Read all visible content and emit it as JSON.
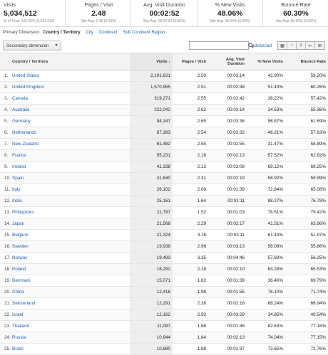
{
  "summary": [
    {
      "label": "Visits",
      "value": "5,034,512",
      "sub": "% of Total: 100.00% (5,034,512)"
    },
    {
      "label": "Pages / Visit",
      "value": "2.48",
      "sub": "Site Avg: 2.48 (0.00%)"
    },
    {
      "label": "Avg. Visit Duration",
      "value": "00:02:52",
      "sub": "Site Avg: 00:02:52 (0.00%)"
    },
    {
      "label": "% New Visits",
      "value": "48.06%",
      "sub": "Site Avg: 48.06% (0.00%)"
    },
    {
      "label": "Bounce Rate",
      "value": "60.30%",
      "sub": "Site Avg: 60.30% (0.00%)"
    }
  ],
  "primary_dimension": {
    "label": "Primary Dimension:",
    "active": "Country / Territory",
    "links": [
      "City",
      "Continent",
      "Sub Continent Region"
    ]
  },
  "toolbar": {
    "secondary_dimension": "Secondary dimension",
    "search_value": "",
    "advanced": "advanced"
  },
  "columns": {
    "country": "Country / Territory",
    "visits": "Visits",
    "pages_visit": "Pages / Visit",
    "duration": "Avg. Visit Duration",
    "new_visits": "% New Visits",
    "bounce": "Bounce Rate"
  },
  "rows": [
    {
      "idx": "1.",
      "country": "United States",
      "visits": "2,101,621",
      "pv": "2.50",
      "dur": "00:03:14",
      "new": "42.90%",
      "br": "59.20%"
    },
    {
      "idx": "2.",
      "country": "United Kingdom",
      "visits": "1,570,955",
      "pv": "2.51",
      "dur": "00:02:38",
      "new": "51.43%",
      "br": "60.26%"
    },
    {
      "idx": "3.",
      "country": "Canada",
      "visits": "319,271",
      "pv": "2.55",
      "dur": "00:02:42",
      "new": "38.22%",
      "br": "57.42%"
    },
    {
      "idx": "4.",
      "country": "Australia",
      "visits": "222,042",
      "pv": "2.62",
      "dur": "00:03:14",
      "new": "34.53%",
      "br": "55.36%"
    },
    {
      "idx": "5.",
      "country": "Germany",
      "visits": "94,347",
      "pv": "2.65",
      "dur": "00:03:38",
      "new": "56.87%",
      "br": "61.69%"
    },
    {
      "idx": "6.",
      "country": "Netherlands",
      "visits": "67,383",
      "pv": "2.54",
      "dur": "00:02:32",
      "new": "46.21%",
      "br": "57.63%"
    },
    {
      "idx": "7.",
      "country": "New Zealand",
      "visits": "61,482",
      "pv": "2.55",
      "dur": "00:02:55",
      "new": "31.47%",
      "br": "58.89%"
    },
    {
      "idx": "8.",
      "country": "France",
      "visits": "55,231",
      "pv": "2.18",
      "dur": "00:02:13",
      "new": "57.52%",
      "br": "62.62%"
    },
    {
      "idx": "9.",
      "country": "Ireland",
      "visits": "41,338",
      "pv": "2.13",
      "dur": "00:02:08",
      "new": "69.12%",
      "br": "69.25%"
    },
    {
      "idx": "10.",
      "country": "Spain",
      "visits": "31,640",
      "pv": "2.31",
      "dur": "00:02:19",
      "new": "58.92%",
      "br": "59.99%"
    },
    {
      "idx": "11.",
      "country": "Italy",
      "visits": "26,102",
      "pv": "2.06",
      "dur": "00:01:39",
      "new": "72.84%",
      "br": "65.08%"
    },
    {
      "idx": "12.",
      "country": "India",
      "visits": "25,161",
      "pv": "1.64",
      "dur": "00:01:11",
      "new": "88.27%",
      "br": "76.78%"
    },
    {
      "idx": "13.",
      "country": "Philippines",
      "visits": "21,797",
      "pv": "1.52",
      "dur": "00:01:03",
      "new": "78.61%",
      "br": "79.42%"
    },
    {
      "idx": "14.",
      "country": "Japan",
      "visits": "21,568",
      "pv": "2.29",
      "dur": "00:02:17",
      "new": "41.51%",
      "br": "63.96%"
    },
    {
      "idx": "15.",
      "country": "Belgium",
      "visits": "21,324",
      "pv": "3.16",
      "dur": "00:03:11",
      "new": "61.43%",
      "br": "51.97%"
    },
    {
      "idx": "16.",
      "country": "Sweden",
      "visits": "19,939",
      "pv": "2.96",
      "dur": "00:03:13",
      "new": "58.08%",
      "br": "55.86%"
    },
    {
      "idx": "17.",
      "country": "Norway",
      "visits": "19,493",
      "pv": "3.35",
      "dur": "00:04:46",
      "new": "57.69%",
      "br": "56.25%"
    },
    {
      "idx": "18.",
      "country": "Poland",
      "visits": "16,292",
      "pv": "2.18",
      "dur": "00:02:10",
      "new": "63.28%",
      "br": "65.53%"
    },
    {
      "idx": "19.",
      "country": "Denmark",
      "visits": "15,071",
      "pv": "1.82",
      "dur": "00:01:39",
      "new": "36.40%",
      "br": "69.79%"
    },
    {
      "idx": "20.",
      "country": "China",
      "visits": "12,416",
      "pv": "1.96",
      "dur": "00:01:55",
      "new": "76.10%",
      "br": "71.74%"
    },
    {
      "idx": "21.",
      "country": "Switzerland",
      "visits": "12,291",
      "pv": "2.38",
      "dur": "00:02:16",
      "new": "68.24%",
      "br": "66.94%"
    },
    {
      "idx": "22.",
      "country": "Israel",
      "visits": "12,162",
      "pv": "2.92",
      "dur": "00:03:29",
      "new": "34.85%",
      "br": "40.54%"
    },
    {
      "idx": "23.",
      "country": "Thailand",
      "visits": "11,087",
      "pv": "1.86",
      "dur": "00:01:46",
      "new": "82.63%",
      "br": "77.16%"
    },
    {
      "idx": "24.",
      "country": "Russia",
      "visits": "10,944",
      "pv": "1.84",
      "dur": "00:02:13",
      "new": "74.04%",
      "br": "77.15%"
    },
    {
      "idx": "25.",
      "country": "Brazil",
      "visits": "10,680",
      "pv": "1.88",
      "dur": "00:01:37",
      "new": "73.65%",
      "br": "72.76%"
    }
  ]
}
